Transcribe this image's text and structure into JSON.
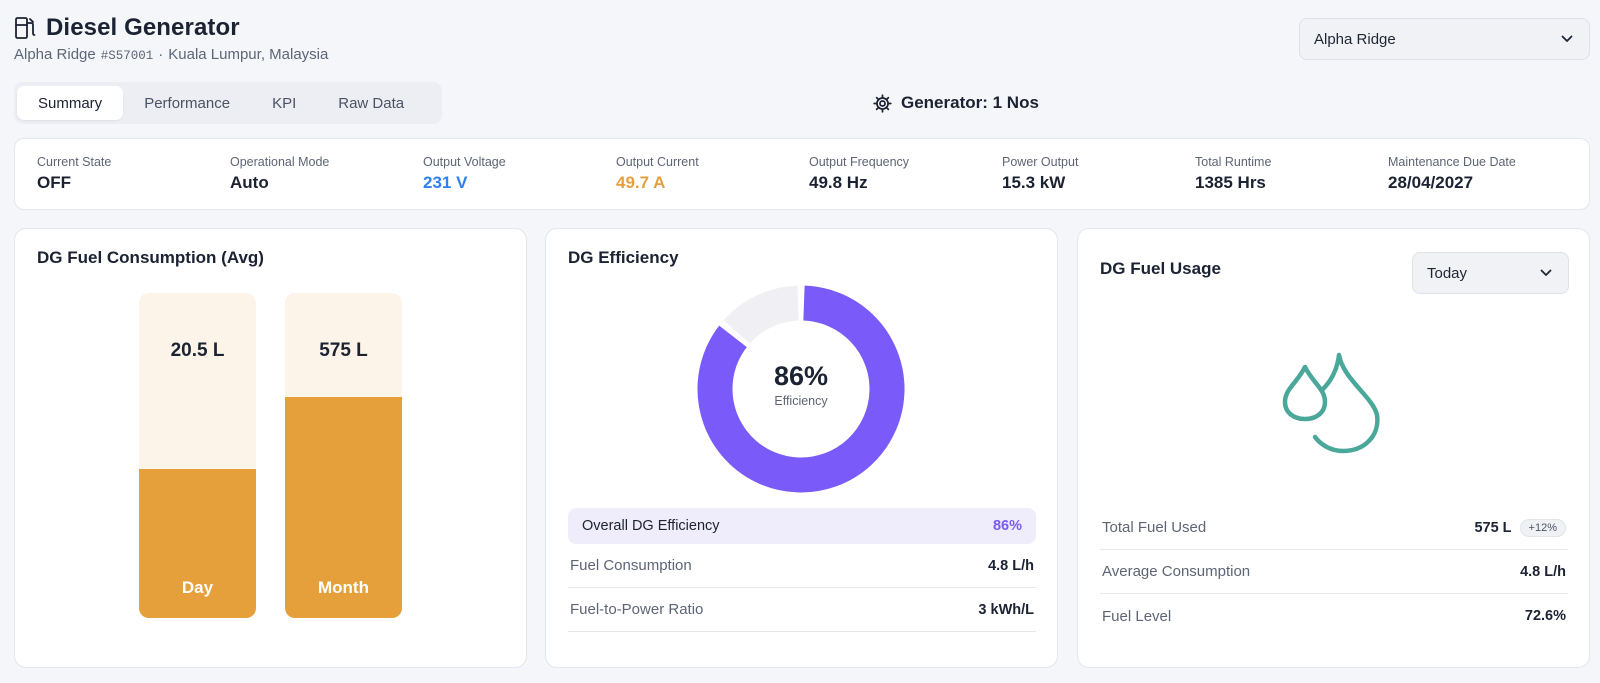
{
  "header": {
    "title": "Diesel Generator",
    "site_name": "Alpha Ridge",
    "site_id": "#S57001",
    "separator": "·",
    "location": "Kuala Lumpur, Malaysia",
    "site_select_value": "Alpha Ridge"
  },
  "tabs": [
    {
      "label": "Summary",
      "active": true
    },
    {
      "label": "Performance",
      "active": false
    },
    {
      "label": "KPI",
      "active": false
    },
    {
      "label": "Raw Data",
      "active": false
    }
  ],
  "generator_count": "Generator: 1 Nos",
  "stats": [
    {
      "label": "Current State",
      "value": "OFF",
      "color": "#1b2232"
    },
    {
      "label": "Operational Mode",
      "value": "Auto",
      "color": "#1b2232"
    },
    {
      "label": "Output Voltage",
      "value": "231 V",
      "color": "#2f80ed"
    },
    {
      "label": "Output Current",
      "value": "49.7 A",
      "color": "#e5a03b"
    },
    {
      "label": "Output Frequency",
      "value": "49.8 Hz",
      "color": "#1b2232"
    },
    {
      "label": "Power Output",
      "value": "15.3 kW",
      "color": "#1b2232"
    },
    {
      "label": "Total Runtime",
      "value": "1385 Hrs",
      "color": "#1b2232"
    },
    {
      "label": "Maintenance Due Date",
      "value": "28/04/2027",
      "color": "#1b2232"
    }
  ],
  "fuel_consumption": {
    "title": "DG Fuel Consumption (Avg)",
    "bars": [
      {
        "label": "Day",
        "value": "20.5 L",
        "fill_fraction": 0.46
      },
      {
        "label": "Month",
        "value": "575 L",
        "fill_fraction": 0.68
      }
    ],
    "colors": {
      "fill": "#e5a03b",
      "track": "#fdf4e9"
    }
  },
  "efficiency": {
    "title": "DG Efficiency",
    "percent": 86,
    "percent_label": "86%",
    "center_label": "Efficiency",
    "overall_label": "Overall DG Efficiency",
    "overall_value": "86%",
    "rows": [
      {
        "label": "Fuel Consumption",
        "value": "4.8 L/h"
      },
      {
        "label": "Fuel-to-Power Ratio",
        "value": "3 kWh/L"
      }
    ],
    "colors": {
      "arc": "#7a5af8",
      "track": "#f0f0f4"
    }
  },
  "fuel_usage": {
    "title": "DG Fuel Usage",
    "period": "Today",
    "icon": "fuel-drops-icon",
    "icon_color": "#4aa89a",
    "rows": [
      {
        "label": "Total Fuel Used",
        "value": "575 L",
        "badge": "+12%"
      },
      {
        "label": "Average Consumption",
        "value": "4.8 L/h"
      },
      {
        "label": "Fuel Level",
        "value": "72.6%"
      }
    ]
  }
}
